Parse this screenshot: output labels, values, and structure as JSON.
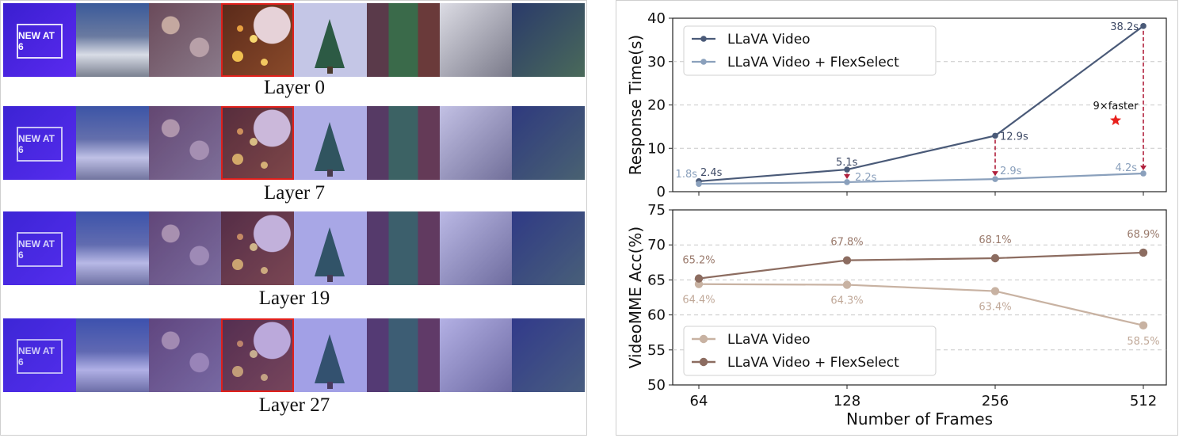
{
  "left_panel": {
    "news_text": "NEW AT 6",
    "layers": [
      {
        "label": "Layer 0"
      },
      {
        "label": "Layer 7"
      },
      {
        "label": "Layer 19"
      },
      {
        "label": "Layer 27"
      }
    ]
  },
  "chart_data": [
    {
      "type": "line",
      "x": [
        64,
        128,
        256,
        512
      ],
      "x_scale": "log2",
      "ylabel": "Response Time(s)",
      "ylim": [
        0,
        40
      ],
      "yticks": [
        0,
        10,
        20,
        30,
        40
      ],
      "grid": true,
      "legend_position": "top-left",
      "series": [
        {
          "name": "LLaVA Video",
          "values": [
            2.4,
            5.1,
            12.9,
            38.2
          ],
          "labels": [
            "2.4s",
            "5.1s",
            "12.9s",
            "38.2s"
          ],
          "color": "#4a5a78"
        },
        {
          "name": "LLaVA Video + FlexSelect",
          "values": [
            1.8,
            2.2,
            2.9,
            4.2
          ],
          "labels": [
            "1.8s",
            "2.2s",
            "2.9s",
            "4.2s"
          ],
          "color": "#8aa0bc"
        }
      ],
      "annotation": {
        "text": "9×faster",
        "marker": "star",
        "marker_color": "#e8201c",
        "arrow_color": "#b0203c"
      }
    },
    {
      "type": "line",
      "x": [
        64,
        128,
        256,
        512
      ],
      "x_scale": "log2",
      "xlabel": "Number of Frames",
      "ylabel": "VideoMME Acc(%)",
      "ylim": [
        50,
        75
      ],
      "yticks": [
        50,
        55,
        60,
        65,
        70,
        75
      ],
      "xticks": [
        "64",
        "128",
        "256",
        "512"
      ],
      "grid": true,
      "legend_position": "bottom-left",
      "series": [
        {
          "name": "LLaVA Video",
          "values": [
            64.4,
            64.3,
            63.4,
            58.5
          ],
          "labels": [
            "64.4%",
            "64.3%",
            "63.4%",
            "58.5%"
          ],
          "color": "#c8b2a2"
        },
        {
          "name": "LLaVA Video + FlexSelect",
          "values": [
            65.2,
            67.8,
            68.1,
            68.9
          ],
          "labels": [
            "65.2%",
            "67.8%",
            "68.1%",
            "68.9%"
          ],
          "color": "#8c6c60"
        }
      ]
    }
  ]
}
